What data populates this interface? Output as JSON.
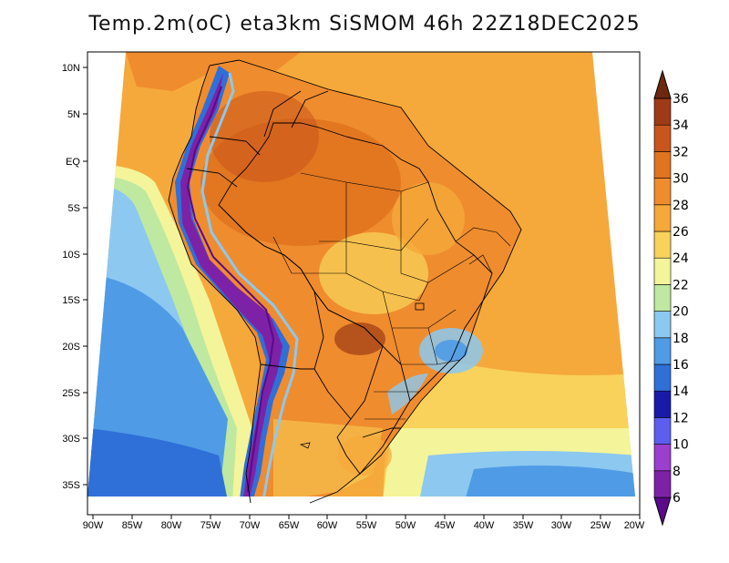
{
  "title": "Temp.2m(oC) eta3km SiSMOM 46h 22Z18DEC2025",
  "map": {
    "lon_labels": [
      "90W",
      "85W",
      "80W",
      "75W",
      "70W",
      "65W",
      "60W",
      "55W",
      "50W",
      "45W",
      "40W",
      "35W",
      "30W",
      "25W",
      "20W"
    ],
    "lat_labels": [
      "10N",
      "5N",
      "EQ",
      "5S",
      "10S",
      "15S",
      "20S",
      "25S",
      "30S",
      "35S"
    ]
  },
  "colorbar": {
    "levels": [
      "6",
      "8",
      "10",
      "12",
      "14",
      "16",
      "18",
      "20",
      "22",
      "24",
      "26",
      "28",
      "30",
      "32",
      "34",
      "36"
    ],
    "colors": [
      "#5a0a8a",
      "#7d22a6",
      "#9b3fcf",
      "#5d5ef0",
      "#1a1aa8",
      "#2f6fd8",
      "#4f9be6",
      "#8cc8f0",
      "#bfe8a0",
      "#f4f49a",
      "#f8d25a",
      "#f5a93a",
      "#ef8c2e",
      "#e0741f",
      "#c8561c",
      "#9e3b16",
      "#6e2810"
    ]
  }
}
